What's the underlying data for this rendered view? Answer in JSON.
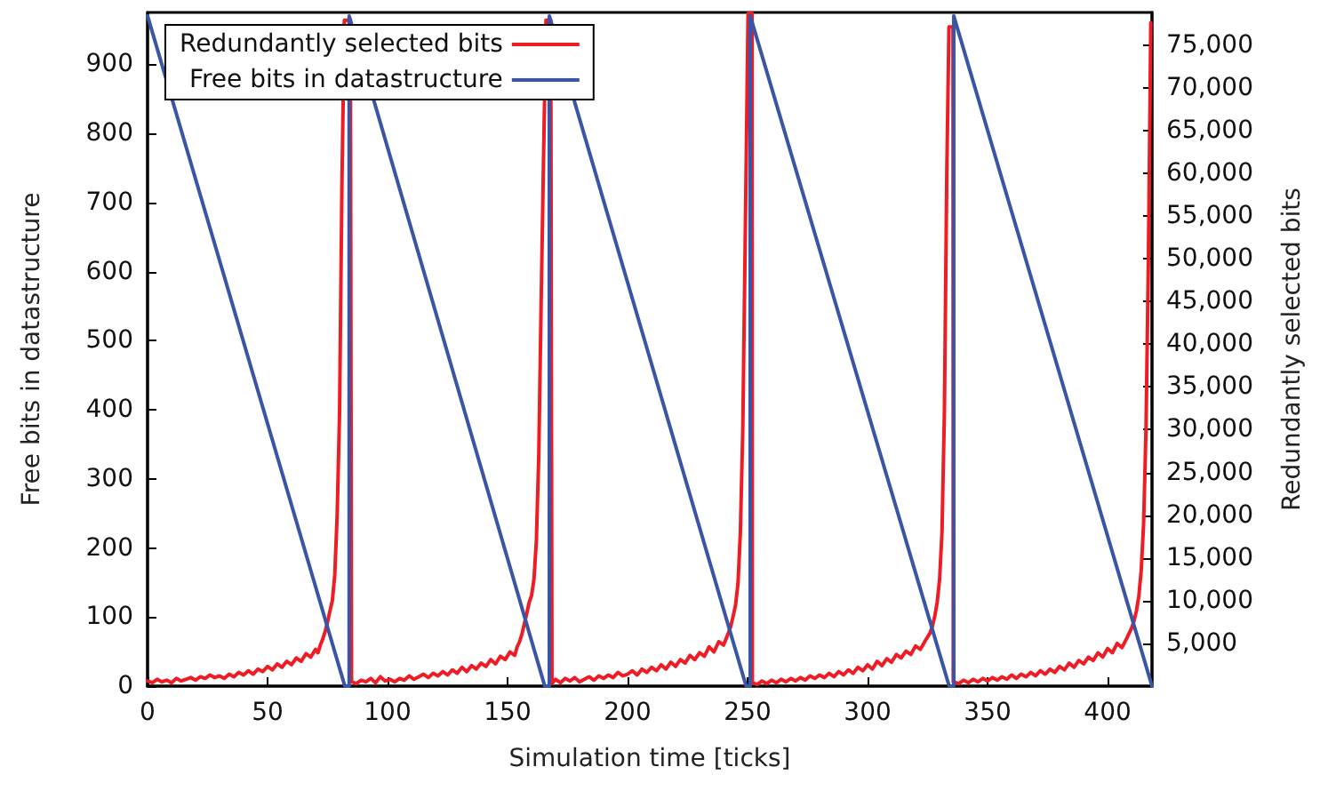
{
  "chart_data": {
    "type": "line",
    "xlabel": "Simulation time [ticks]",
    "ylabel": "Free bits in datastructure",
    "y2label": "Redundantly selected bits",
    "xlim": [
      0,
      418.5
    ],
    "xticks": [
      0,
      50,
      100,
      150,
      200,
      250,
      300,
      350,
      400
    ],
    "ylim": [
      0,
      975
    ],
    "yticks": [
      0,
      100,
      200,
      300,
      400,
      500,
      600,
      700,
      800,
      900
    ],
    "y2lim": [
      0,
      78800
    ],
    "y2ticks": [
      {
        "value": 5000,
        "label": "5,000"
      },
      {
        "value": 10000,
        "label": "10,000"
      },
      {
        "value": 15000,
        "label": "15,000"
      },
      {
        "value": 20000,
        "label": "20,000"
      },
      {
        "value": 25000,
        "label": "25,000"
      },
      {
        "value": 30000,
        "label": "30,000"
      },
      {
        "value": 35000,
        "label": "35,000"
      },
      {
        "value": 40000,
        "label": "40,000"
      },
      {
        "value": 45000,
        "label": "45,000"
      },
      {
        "value": 50000,
        "label": "50,000"
      },
      {
        "value": 55000,
        "label": "55,000"
      },
      {
        "value": 60000,
        "label": "60,000"
      },
      {
        "value": 65000,
        "label": "65,000"
      },
      {
        "value": 70000,
        "label": "70,000"
      },
      {
        "value": 75000,
        "label": "75,000"
      }
    ],
    "grid": false,
    "legend": "top left",
    "marker": "none",
    "line_style": "solid",
    "series": [
      {
        "name": "Redundantly selected bits",
        "color": "#ee1c24",
        "axis": "y2",
        "x": [
          0,
          2,
          4,
          6,
          8,
          10,
          12,
          14,
          16,
          18,
          20,
          22,
          24,
          26,
          28,
          30,
          32,
          34,
          36,
          38,
          40,
          42,
          44,
          46,
          48,
          50,
          52,
          54,
          56,
          58,
          60,
          62,
          64,
          66,
          68,
          70,
          71,
          72,
          73,
          74,
          75,
          76,
          77,
          78,
          79,
          80,
          81,
          82,
          84.5,
          85,
          87,
          89,
          91,
          93,
          95,
          97,
          99,
          101,
          103,
          105,
          107,
          109,
          111,
          113,
          115,
          117,
          119,
          121,
          123,
          125,
          127,
          129,
          131,
          133,
          135,
          137,
          139,
          141,
          143,
          145,
          147,
          149,
          151,
          153,
          154,
          155,
          156,
          157,
          158,
          159,
          160,
          161,
          162,
          163,
          164,
          165,
          166,
          168,
          168.5,
          170,
          172,
          174,
          176,
          178,
          180,
          182,
          184,
          186,
          188,
          190,
          192,
          194,
          196,
          198,
          200,
          202,
          204,
          206,
          208,
          210,
          212,
          214,
          216,
          218,
          220,
          222,
          224,
          226,
          228,
          230,
          232,
          234,
          236,
          238,
          240,
          242,
          243,
          244,
          245,
          246,
          247,
          248,
          249,
          250.2,
          251.9,
          252,
          254,
          256,
          258,
          260,
          262,
          264,
          266,
          268,
          270,
          272,
          274,
          276,
          278,
          280,
          282,
          284,
          286,
          288,
          290,
          292,
          294,
          296,
          298,
          300,
          302,
          304,
          306,
          308,
          310,
          312,
          314,
          316,
          318,
          320,
          322,
          324,
          326,
          327,
          328,
          329,
          330,
          331,
          332,
          333,
          333.9,
          335.6,
          335.7,
          338,
          340,
          342,
          344,
          346,
          348,
          350,
          352,
          354,
          356,
          358,
          360,
          362,
          364,
          366,
          368,
          370,
          372,
          374,
          376,
          378,
          380,
          382,
          384,
          386,
          388,
          390,
          392,
          394,
          396,
          398,
          400,
          402,
          404,
          406,
          408,
          410,
          411,
          412,
          413,
          414,
          415,
          416,
          417,
          418
        ],
        "values": [
          600,
          400,
          800,
          500,
          700,
          400,
          900,
          600,
          800,
          1000,
          700,
          1100,
          900,
          1300,
          1000,
          1200,
          900,
          1400,
          1100,
          1600,
          1300,
          1800,
          1400,
          2000,
          1700,
          2300,
          1900,
          2600,
          2200,
          2900,
          2500,
          3300,
          2900,
          3800,
          3400,
          4300,
          3900,
          4800,
          5500,
          6400,
          7500,
          8800,
          10000,
          13000,
          20000,
          32000,
          59000,
          77900,
          77900,
          500,
          300,
          700,
          500,
          900,
          400,
          1100,
          600,
          800,
          500,
          900,
          700,
          1200,
          800,
          1100,
          1400,
          1000,
          1500,
          1200,
          1700,
          1300,
          1900,
          1500,
          2200,
          1700,
          2400,
          2000,
          2700,
          2300,
          3100,
          2600,
          3500,
          3100,
          4000,
          3600,
          4600,
          5200,
          6100,
          7300,
          8500,
          9800,
          10600,
          12500,
          17000,
          27000,
          45000,
          62000,
          77900,
          77900,
          300,
          800,
          400,
          900,
          600,
          1000,
          500,
          800,
          1100,
          700,
          1200,
          900,
          1300,
          1000,
          1600,
          1200,
          1400,
          1800,
          1300,
          2000,
          1600,
          2200,
          1800,
          2500,
          2000,
          2800,
          2300,
          3100,
          2700,
          3600,
          3100,
          3900,
          3500,
          4600,
          4000,
          5200,
          4800,
          6200,
          7000,
          8200,
          9500,
          12000,
          18000,
          30000,
          52000,
          78700,
          78700,
          400,
          200,
          600,
          300,
          700,
          400,
          800,
          500,
          900,
          600,
          1000,
          700,
          1200,
          900,
          1300,
          1000,
          1500,
          1100,
          1700,
          1300,
          1900,
          1500,
          2200,
          1800,
          2500,
          2000,
          2900,
          2400,
          3200,
          2800,
          3700,
          3300,
          4100,
          3700,
          4700,
          4300,
          5300,
          6200,
          7000,
          8200,
          9800,
          12500,
          18000,
          32000,
          60000,
          77100,
          77100,
          500,
          300,
          700,
          400,
          800,
          500,
          900,
          600,
          1000,
          700,
          1100,
          800,
          1300,
          900,
          1400,
          1100,
          1600,
          1200,
          1800,
          1400,
          2000,
          1600,
          2300,
          1900,
          2700,
          2200,
          3000,
          2600,
          3400,
          3000,
          3900,
          3400,
          4400,
          3900,
          5000,
          4500,
          5600,
          6800,
          7600,
          8800,
          10500,
          13500,
          19000,
          30000,
          50000,
          77600
        ]
      },
      {
        "name": "Free bits in datastructure",
        "color": "#3a55a6",
        "x": [
          0,
          82.2,
          84,
          84,
          165.5,
          167.4,
          167.4,
          249.4,
          251.1,
          251.1,
          334,
          335.9,
          335.9,
          418.5
        ],
        "values": [
          970,
          0,
          0,
          970,
          0,
          0,
          970,
          0,
          0,
          970,
          0,
          0,
          970,
          0
        ]
      }
    ]
  }
}
